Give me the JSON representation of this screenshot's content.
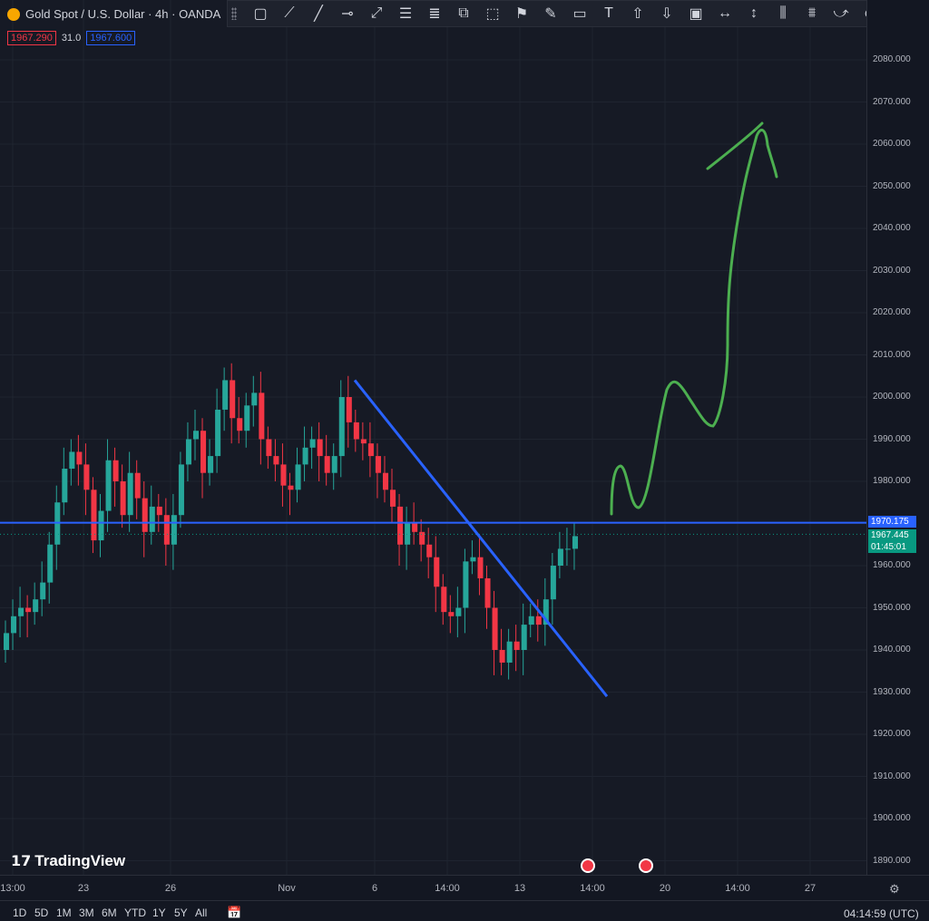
{
  "header": {
    "title": "Gold Spot / U.S. Dollar · 4h · OANDA",
    "bid": "1967.290",
    "spread": "31.0",
    "ask": "1967.600",
    "logo_icon": "gold-coin-icon"
  },
  "toolbar": {
    "tools": [
      {
        "name": "rectangle-tool",
        "glyph": "▢"
      },
      {
        "name": "path-tool",
        "glyph": "⟋"
      },
      {
        "name": "trendline-tool",
        "glyph": "╱"
      },
      {
        "name": "horizontal-line-tool",
        "glyph": "⊸"
      },
      {
        "name": "ray-tool",
        "glyph": "⤢"
      },
      {
        "name": "fib-retracement-tool",
        "glyph": "☰"
      },
      {
        "name": "fib-extension-tool",
        "glyph": "≣"
      },
      {
        "name": "parallel-channel-tool",
        "glyph": "⧉"
      },
      {
        "name": "callout-tool",
        "glyph": "⬚"
      },
      {
        "name": "flag-tool",
        "glyph": "⚑"
      },
      {
        "name": "brush-tool",
        "glyph": "✎"
      },
      {
        "name": "comment-tool",
        "glyph": "▭"
      },
      {
        "name": "text-tool",
        "glyph": "T"
      },
      {
        "name": "arrow-up-tool",
        "glyph": "⇧"
      },
      {
        "name": "arrow-down-tool",
        "glyph": "⇩"
      },
      {
        "name": "image-tool",
        "glyph": "▣"
      },
      {
        "name": "date-range-tool",
        "glyph": "↔"
      },
      {
        "name": "price-range-tool",
        "glyph": "↕"
      },
      {
        "name": "bars-pattern-tool",
        "glyph": "⫼"
      },
      {
        "name": "ghost-feed-tool",
        "glyph": "⩩"
      },
      {
        "name": "forecast-tool",
        "glyph": "⤻"
      },
      {
        "name": "more-tools",
        "glyph": "⊙"
      }
    ]
  },
  "price_axis": {
    "ticks": [
      "2080.000",
      "2070.000",
      "2060.000",
      "2050.000",
      "2040.000",
      "2030.000",
      "2020.000",
      "2010.000",
      "2000.000",
      "1990.000",
      "1980.000",
      "1970.000",
      "1960.000",
      "1950.000",
      "1940.000",
      "1930.000",
      "1920.000",
      "1910.000",
      "1900.000",
      "1890.000"
    ],
    "line_label": "1970.175",
    "last_price": "1967.445",
    "countdown": "01:45:01"
  },
  "time_axis": {
    "ticks": [
      "13:00",
      "23",
      "26",
      "Nov",
      "6",
      "14:00",
      "13",
      "14:00",
      "20",
      "14:00",
      "27"
    ]
  },
  "range_buttons": [
    "1D",
    "5D",
    "1M",
    "3M",
    "6M",
    "YTD",
    "1Y",
    "5Y",
    "All"
  ],
  "clock": "04:14:59 (UTC)",
  "brand": "TradingView",
  "colors": {
    "bull": "#26a69a",
    "bear": "#f23645",
    "trendline": "#2962ff",
    "drawing": "#4caf50"
  },
  "chart_data": {
    "type": "candlestick",
    "symbol": "XAUUSD",
    "ylim": [
      1885,
      2085
    ],
    "horizontal_line": 1970.175,
    "trendline": [
      [
        1.0,
        2004
      ],
      [
        2.0,
        1929
      ]
    ],
    "candles_close_series": [
      1944,
      1948,
      1950,
      1949,
      1952,
      1956,
      1965,
      1975,
      1983,
      1987,
      1984,
      1978,
      1966,
      1973,
      1985,
      1980,
      1972,
      1982,
      1976,
      1968,
      1974,
      1972,
      1965,
      1972,
      1984,
      1990,
      1992,
      1982,
      1986,
      1997,
      2004,
      1995,
      1992,
      1998,
      2001,
      1990,
      1986,
      1984,
      1979,
      1978,
      1984,
      1988,
      1990,
      1986,
      1982,
      1986,
      2000,
      1994,
      1990,
      1989,
      1986,
      1982,
      1978,
      1974,
      1965,
      1970,
      1968,
      1965,
      1962,
      1955,
      1949,
      1948,
      1950,
      1961,
      1962,
      1957,
      1950,
      1940,
      1937,
      1942,
      1940,
      1946,
      1948,
      1946,
      1952,
      1960,
      1964,
      1964,
      1967
    ]
  }
}
